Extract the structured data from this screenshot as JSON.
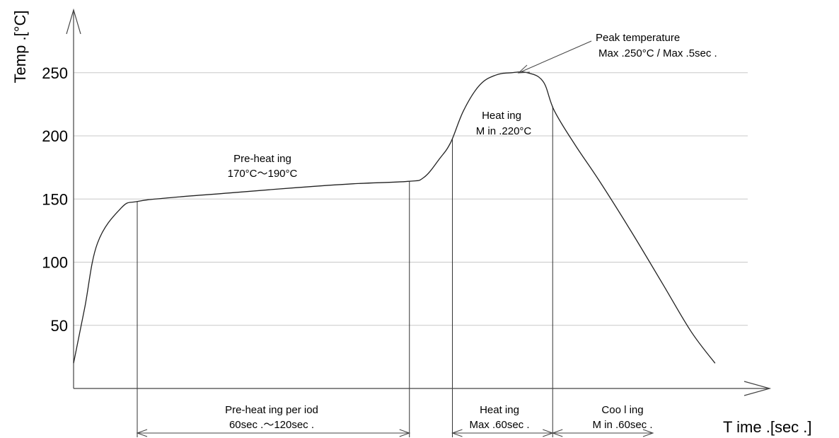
{
  "chart_data": {
    "type": "line",
    "title": "",
    "xlabel": "T ime .[sec .]",
    "ylabel": "Temp .[°C]",
    "ylim": [
      0,
      270
    ],
    "yticks": [
      50,
      100,
      150,
      200,
      250
    ],
    "grid": true,
    "series": [
      {
        "x": [
          0,
          7,
          15,
          30,
          40,
          60,
          100,
          140,
          175,
          210,
          220,
          230,
          237,
          245,
          255,
          265,
          275,
          285,
          295,
          302,
          315,
          330,
          350,
          370,
          388,
          403
        ],
        "y": [
          20,
          64,
          115,
          143,
          148,
          151,
          155,
          159,
          162,
          164,
          167,
          182,
          195,
          220,
          240,
          248,
          250,
          250,
          243,
          220,
          193,
          165,
          125,
          83,
          45,
          20
        ]
      }
    ],
    "annotations": {
      "peak": {
        "line1": "Peak temperature",
        "line2": "Max .250°C / Max .5sec .",
        "x": 279,
        "y": 250
      },
      "heating_zone": {
        "line1": "Heat ing",
        "line2": "M in .220°C",
        "x": 273,
        "y": 216
      },
      "preheat_zone": {
        "line1": "Pre-heat ing",
        "line2": "170°C〜190°C",
        "x": 122,
        "y": 173
      }
    },
    "markers_x": [
      40,
      211,
      238,
      301
    ],
    "periods": [
      {
        "line1": "Pre-heat ing per iod",
        "line2": "60sec .〜120sec .",
        "x_start": 40,
        "x_end": 211
      },
      {
        "line1": "Heat ing",
        "line2": "Max .60sec .",
        "x_start": 238,
        "x_end": 301
      },
      {
        "line1": "Coo l ing",
        "line2": "M in .60sec .",
        "x_start": 301,
        "x_end": 364
      }
    ]
  }
}
